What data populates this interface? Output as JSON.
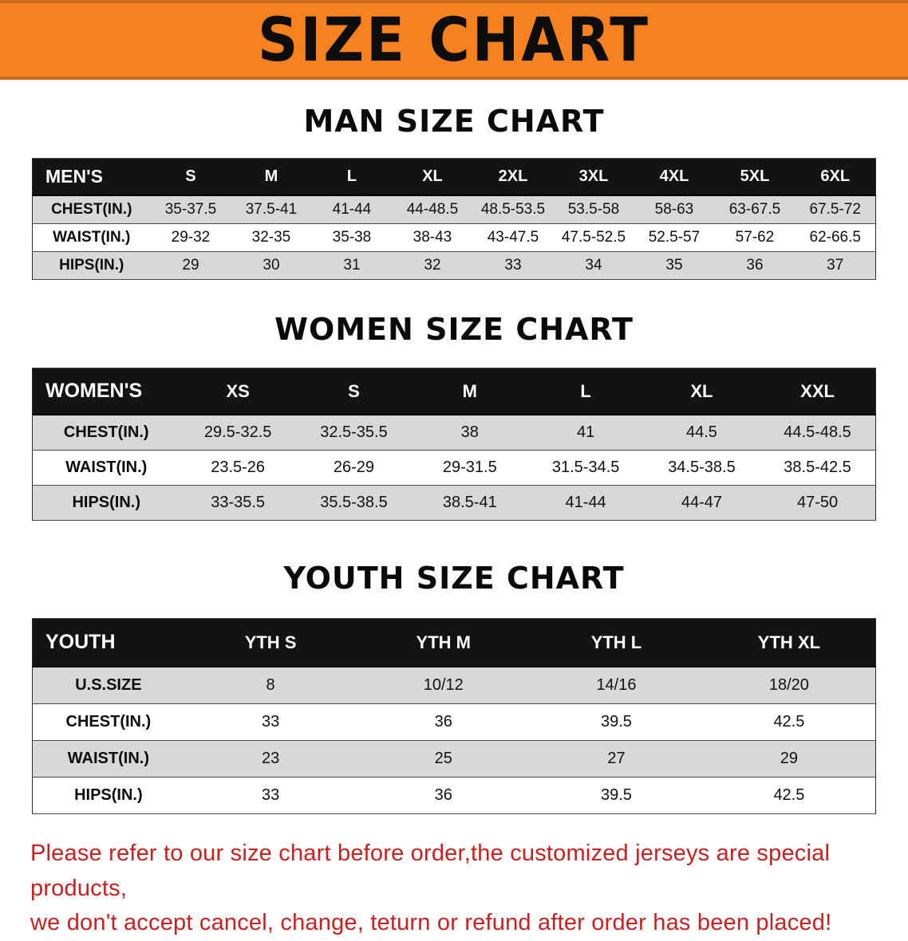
{
  "banner": {
    "title": "SIZE CHART",
    "bg_color": "#f5821f",
    "text_color": "#0d0d0d"
  },
  "sections": [
    {
      "heading": "MAN SIZE CHART",
      "table": {
        "header": [
          "MEN'S",
          "S",
          "M",
          "L",
          "XL",
          "2XL",
          "3XL",
          "4XL",
          "5XL",
          "6XL"
        ],
        "rows": [
          {
            "label": "CHEST(IN.)",
            "values": [
              "35-37.5",
              "37.5-41",
              "41-44",
              "44-48.5",
              "48.5-53.5",
              "53.5-58",
              "58-63",
              "63-67.5",
              "67.5-72"
            ]
          },
          {
            "label": "WAIST(IN.)",
            "values": [
              "29-32",
              "32-35",
              "35-38",
              "38-43",
              "43-47.5",
              "47.5-52.5",
              "52.5-57",
              "57-62",
              "62-66.5"
            ]
          },
          {
            "label": "HIPS(IN.)",
            "values": [
              "29",
              "30",
              "31",
              "32",
              "33",
              "34",
              "35",
              "36",
              "37"
            ]
          }
        ]
      }
    },
    {
      "heading": "WOMEN SIZE CHART",
      "table": {
        "header": [
          "WOMEN'S",
          "XS",
          "S",
          "M",
          "L",
          "XL",
          "XXL"
        ],
        "rows": [
          {
            "label": "CHEST(IN.)",
            "values": [
              "29.5-32.5",
              "32.5-35.5",
              "38",
              "41",
              "44.5",
              "44.5-48.5"
            ]
          },
          {
            "label": "WAIST(IN.)",
            "values": [
              "23.5-26",
              "26-29",
              "29-31.5",
              "31.5-34.5",
              "34.5-38.5",
              "38.5-42.5"
            ]
          },
          {
            "label": "HIPS(IN.)",
            "values": [
              "33-35.5",
              "35.5-38.5",
              "38.5-41",
              "41-44",
              "44-47",
              "47-50"
            ]
          }
        ]
      }
    },
    {
      "heading": "YOUTH SIZE CHART",
      "table": {
        "header": [
          "YOUTH",
          "YTH S",
          "YTH M",
          "YTH L",
          "YTH XL"
        ],
        "rows": [
          {
            "label": "U.S.SIZE",
            "values": [
              "8",
              "10/12",
              "14/16",
              "18/20"
            ]
          },
          {
            "label": "CHEST(IN.)",
            "values": [
              "33",
              "36",
              "39.5",
              "42.5"
            ]
          },
          {
            "label": "WAIST(IN.)",
            "values": [
              "23",
              "25",
              "27",
              "29"
            ]
          },
          {
            "label": "HIPS(IN.)",
            "values": [
              "33",
              "36",
              "39.5",
              "42.5"
            ]
          }
        ]
      }
    }
  ],
  "footer": {
    "line1": "Please refer to our size chart before order,the customized jerseys are special products,",
    "line2": "we don't accept cancel, change, teturn or refund after order has been placed!",
    "text_color": "#c92120"
  }
}
